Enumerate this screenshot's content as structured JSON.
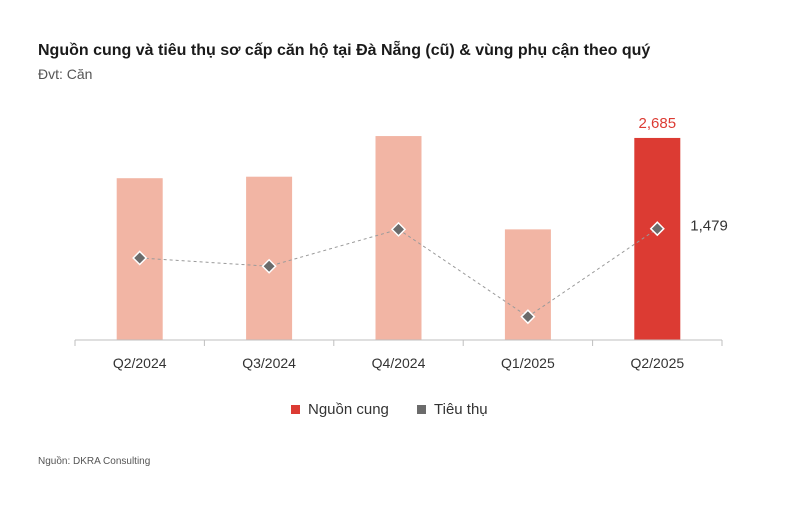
{
  "title": "Nguồn cung và tiêu thụ sơ cấp căn hộ tại Đà Nẵng (cũ) & vùng phụ cận theo quý",
  "unit": "Đvt: Căn",
  "source": "Nguồn: DKRA Consulting",
  "colors": {
    "supply": "#f2b5a4",
    "supply_highlight": "#dc3b33",
    "absorption_marker": "#6b6b6b",
    "line": "#9a9a9a",
    "highlight_label": "#dc3b33",
    "label": "#333333"
  },
  "chart_data": {
    "type": "bar",
    "categories": [
      "Q2/2024",
      "Q3/2024",
      "Q4/2024",
      "Q1/2025",
      "Q2/2025"
    ],
    "series": [
      {
        "name": "Nguồn cung",
        "type": "bar",
        "values": [
          2150,
          2170,
          2710,
          1470,
          2685
        ]
      },
      {
        "name": "Tiêu thụ",
        "type": "line",
        "values": [
          1090,
          980,
          1470,
          310,
          1479
        ]
      }
    ],
    "data_labels": [
      {
        "series": "Nguồn cung",
        "category": "Q2/2025",
        "text": "2,685"
      },
      {
        "series": "Tiêu thụ",
        "category": "Q2/2025",
        "text": "1,479"
      }
    ],
    "highlight_category": "Q2/2025",
    "ylim": [
      0,
      2950
    ],
    "grid": false,
    "legend": {
      "position": "bottom",
      "entries": [
        "Nguồn cung",
        "Tiêu thụ"
      ]
    }
  }
}
